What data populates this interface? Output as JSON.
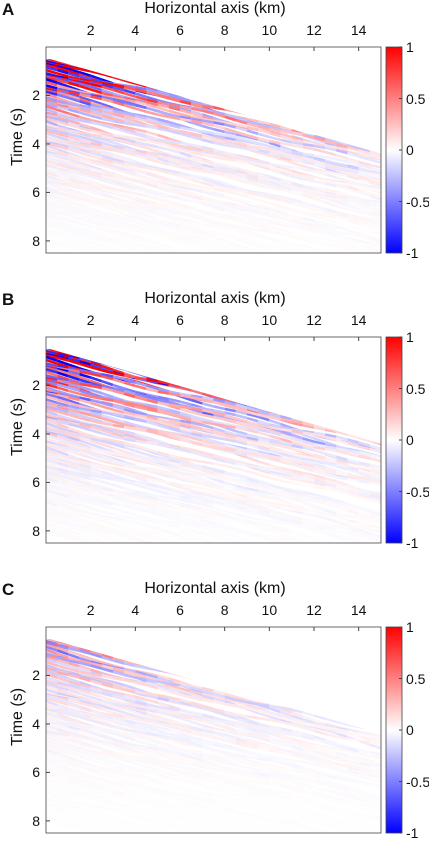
{
  "chart_data": [
    {
      "type": "heatmap",
      "panel_label": "A",
      "xlabel": "Horizontal axis (km)",
      "ylabel": "Time (s)",
      "xticks": [
        "2",
        "4",
        "6",
        "8",
        "10",
        "12",
        "14"
      ],
      "yticks": [
        "2",
        "4",
        "6",
        "8"
      ],
      "colorbar_ticks": [
        "1",
        "0.5",
        "0",
        "-0.5",
        "-1"
      ],
      "xlim": [
        0,
        15
      ],
      "ylim": [
        0,
        8.5
      ],
      "clim": [
        -1,
        1
      ],
      "first_arrival": {
        "x": [
          0.2,
          15
        ],
        "t": [
          0.5,
          4.4
        ]
      },
      "amplitude_strength": 1.0
    },
    {
      "type": "heatmap",
      "panel_label": "B",
      "xlabel": "Horizontal axis (km)",
      "ylabel": "Time (s)",
      "xticks": [
        "2",
        "4",
        "6",
        "8",
        "10",
        "12",
        "14"
      ],
      "yticks": [
        "2",
        "4",
        "6",
        "8"
      ],
      "colorbar_ticks": [
        "1",
        "0.5",
        "0",
        "-0.5",
        "-1"
      ],
      "xlim": [
        0,
        15
      ],
      "ylim": [
        0,
        8.5
      ],
      "clim": [
        -1,
        1
      ],
      "first_arrival": {
        "x": [
          0.2,
          15
        ],
        "t": [
          0.5,
          4.4
        ]
      },
      "amplitude_strength": 1.15
    },
    {
      "type": "heatmap",
      "panel_label": "C",
      "xlabel": "Horizontal axis (km)",
      "ylabel": "Time (s)",
      "xticks": [
        "2",
        "4",
        "6",
        "8",
        "10",
        "12",
        "14"
      ],
      "yticks": [
        "2",
        "4",
        "6",
        "8"
      ],
      "colorbar_ticks": [
        "1",
        "0.5",
        "0",
        "-0.5",
        "-1"
      ],
      "xlim": [
        0,
        15
      ],
      "ylim": [
        0,
        8.5
      ],
      "clim": [
        -1,
        1
      ],
      "first_arrival": {
        "x": [
          0.2,
          15
        ],
        "t": [
          0.5,
          4.4
        ]
      },
      "amplitude_strength": 0.45
    }
  ],
  "colors": {
    "positive": "#ff0000",
    "negative": "#0000ff",
    "zero": "#ffffff",
    "axis": "#444444"
  }
}
